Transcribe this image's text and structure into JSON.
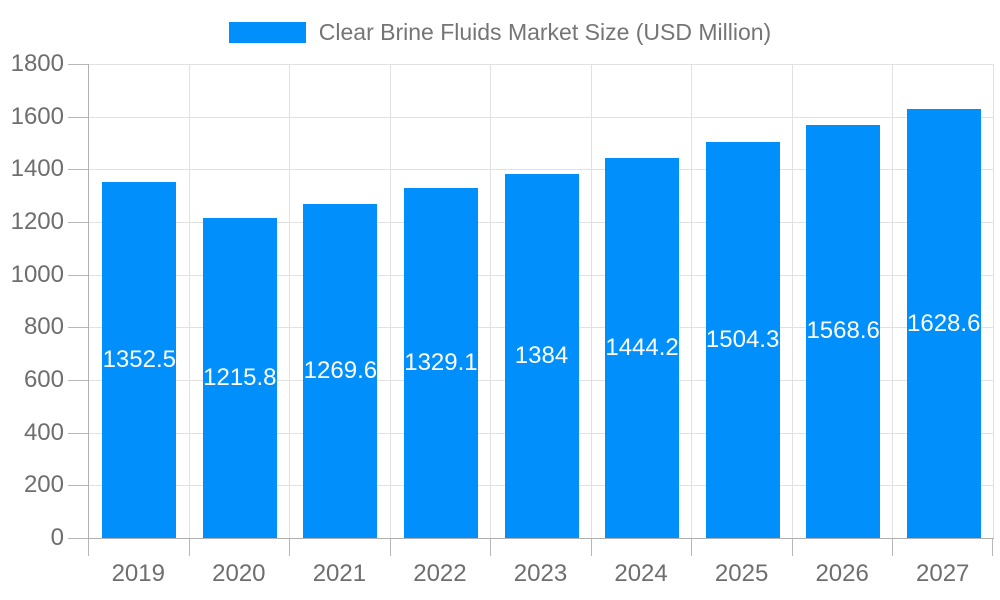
{
  "chart_data": {
    "type": "bar",
    "title": "Clear Brine Fluids Market Size (USD Million)",
    "categories": [
      "2019",
      "2020",
      "2021",
      "2022",
      "2023",
      "2024",
      "2025",
      "2026",
      "2027"
    ],
    "values": [
      1352.5,
      1215.8,
      1269.6,
      1329.1,
      1384,
      1444.2,
      1504.3,
      1568.6,
      1628.6
    ],
    "series_name": "Clear Brine Fluids Market Size (USD Million)",
    "xlabel": "",
    "ylabel": "",
    "ylim": [
      0,
      1800
    ],
    "ytick_interval": 200,
    "ytick_labels": [
      "0",
      "200",
      "400",
      "600",
      "800",
      "1000",
      "1200",
      "1400",
      "1600",
      "1800"
    ],
    "grid": "on",
    "legend_position": "top-center",
    "value_labels": "inside-center",
    "colors": {
      "bar": "#008FFB",
      "axis_line": "#B0B0B0",
      "tick": "#B7B7B7",
      "grid_line": "#E1E1E1",
      "axis_text": "#6E6E6E",
      "title_text": "#757575",
      "value_label_text": "#FFFFFF",
      "background": "#FFFFFF"
    }
  }
}
